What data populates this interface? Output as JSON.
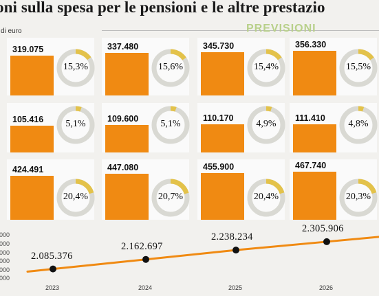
{
  "header": {
    "title": "oni sulla spesa per le pensioni e le altre prestazio",
    "unit": "di euro",
    "previsioni": "PREVISIONI"
  },
  "colors": {
    "bar": "#f08a12",
    "donut_fill": "#e3c24a",
    "donut_ring": "#d9d9d3",
    "line": "#f08a12",
    "point": "#111111"
  },
  "chart_data": [
    {
      "type": "bar",
      "categories": [
        "2023",
        "2024",
        "2025",
        "2026"
      ],
      "values": [
        319.075,
        337.48,
        345.73,
        356.33
      ],
      "value_labels": [
        "319.075",
        "337.480",
        "345.730",
        "356.330"
      ],
      "percent_labels": [
        "15,3%",
        "15,6%",
        "15,4%",
        "15,5%"
      ],
      "percents": [
        15.3,
        15.6,
        15.4,
        15.5
      ]
    },
    {
      "type": "bar",
      "categories": [
        "2023",
        "2024",
        "2025",
        "2026"
      ],
      "values": [
        105.416,
        109.6,
        110.17,
        111.41
      ],
      "value_labels": [
        "105.416",
        "109.600",
        "110.170",
        "111.410"
      ],
      "percent_labels": [
        "5,1%",
        "5,1%",
        "4,9%",
        "4,8%"
      ],
      "percents": [
        5.1,
        5.1,
        4.9,
        4.8
      ]
    },
    {
      "type": "bar",
      "categories": [
        "2023",
        "2024",
        "2025",
        "2026"
      ],
      "values": [
        424.491,
        447.08,
        455.9,
        467.74
      ],
      "value_labels": [
        "424.491",
        "447.080",
        "455.900",
        "467.740"
      ],
      "percent_labels": [
        "20,4%",
        "20,7%",
        "20,4%",
        "20,3%"
      ],
      "percents": [
        20.4,
        20.7,
        20.4,
        20.3
      ]
    },
    {
      "type": "line",
      "x": [
        "2023",
        "2024",
        "2025",
        "2026"
      ],
      "values": [
        2085.376,
        2162.697,
        2238.234,
        2305.906
      ],
      "value_labels": [
        "2.085.376",
        "2.162.697",
        "2.238.234",
        "2.305.906"
      ],
      "y_tick_labels": [
        "000",
        "000",
        "000",
        "000",
        "000",
        "000"
      ]
    }
  ]
}
